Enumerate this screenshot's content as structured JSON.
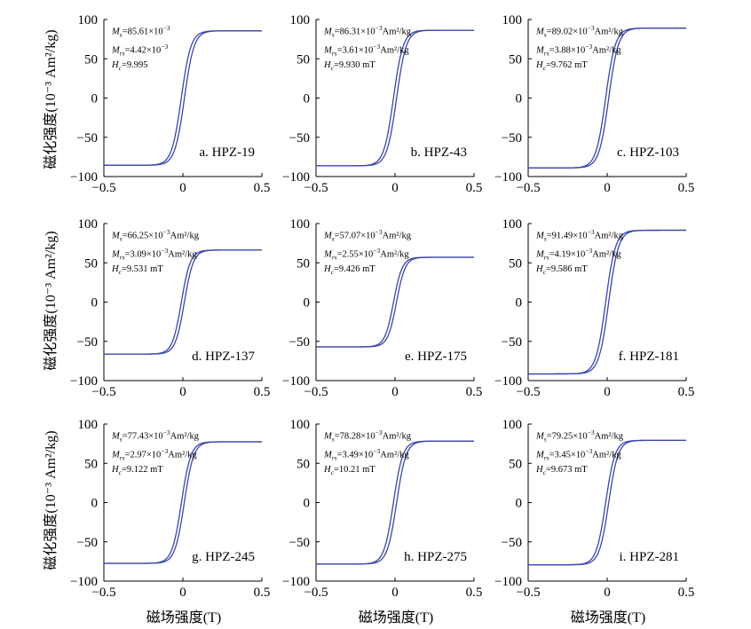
{
  "y_axis_label": "磁化强度(10⁻³ Am²/kg)",
  "x_axis_label": "磁场强度(T)",
  "colors": {
    "curve": "#3a46a8",
    "axis": "#000000"
  },
  "chart_data": [
    {
      "type": "line",
      "label": "a. HPZ-19",
      "xlim": [
        -0.5,
        0.5
      ],
      "ylim": [
        -100,
        100
      ],
      "xticks": [
        "−0.5",
        "0",
        "0.5"
      ],
      "yticks": [
        "100",
        "50",
        "0",
        "−50",
        "−100"
      ],
      "annotations": {
        "Ms": "85.61×10",
        "Mrs": "4.42×10",
        "Hc": "9.995",
        "Ms_exp": "−3",
        "Mrs_exp": "−3",
        "Ms_unit": "",
        "Mrs_unit": "",
        "Hc_unit": ""
      },
      "ms": 85.61,
      "mrs": 4.42,
      "hc": 9.995
    },
    {
      "type": "line",
      "label": "b. HPZ-43",
      "xlim": [
        -0.5,
        0.5
      ],
      "ylim": [
        -100,
        100
      ],
      "xticks": [
        "−0.5",
        "0",
        "0.5"
      ],
      "yticks": [
        "100",
        "50",
        "0",
        "−50",
        "−100"
      ],
      "annotations": {
        "Ms": "86.31×10",
        "Mrs": "3.61×10",
        "Hc": "9.930",
        "Ms_exp": "−3",
        "Mrs_exp": "−3",
        "Ms_unit": "Am²/kg",
        "Mrs_unit": "Am²/kg",
        "Hc_unit": " mT"
      },
      "ms": 86.31,
      "mrs": 3.61,
      "hc": 9.93
    },
    {
      "type": "line",
      "label": "c. HPZ-103",
      "xlim": [
        -0.5,
        0.5
      ],
      "ylim": [
        -100,
        100
      ],
      "xticks": [
        "−0.5",
        "0",
        "0.5"
      ],
      "yticks": [
        "100",
        "50",
        "0",
        "−50",
        "−100"
      ],
      "annotations": {
        "Ms": "89.02×10",
        "Mrs": "3.88×10",
        "Hc": "9.762",
        "Ms_exp": "−3",
        "Mrs_exp": "−3",
        "Ms_unit": "Am²/kg",
        "Mrs_unit": "Am²/kg",
        "Hc_unit": " mT"
      },
      "ms": 89.02,
      "mrs": 3.88,
      "hc": 9.762
    },
    {
      "type": "line",
      "label": "d. HPZ-137",
      "xlim": [
        -0.5,
        0.5
      ],
      "ylim": [
        -100,
        100
      ],
      "xticks": [
        "−0.5",
        "0",
        "0.5"
      ],
      "yticks": [
        "100",
        "50",
        "0",
        "−50",
        "−100"
      ],
      "annotations": {
        "Ms": "66.25×10",
        "Mrs": "3.09×10",
        "Hc": "9.531",
        "Ms_exp": "−3",
        "Mrs_exp": "−3",
        "Ms_unit": "Am²/kg",
        "Mrs_unit": "Am²/kg",
        "Hc_unit": " mT"
      },
      "ms": 66.25,
      "mrs": 3.09,
      "hc": 9.531
    },
    {
      "type": "line",
      "label": "e. HPZ-175",
      "xlim": [
        -0.5,
        0.5
      ],
      "ylim": [
        -100,
        100
      ],
      "xticks": [
        "−0.5",
        "0",
        "0.5"
      ],
      "yticks": [
        "100",
        "50",
        "0",
        "−50",
        "−100"
      ],
      "annotations": {
        "Ms": "57.07×10",
        "Mrs": "2.55×10",
        "Hc": "9.426",
        "Ms_exp": "−3",
        "Mrs_exp": "−3",
        "Ms_unit": "Am²/kg",
        "Mrs_unit": "Am²/kg",
        "Hc_unit": " mT"
      },
      "ms": 57.07,
      "mrs": 2.55,
      "hc": 9.426
    },
    {
      "type": "line",
      "label": "f. HPZ-181",
      "xlim": [
        -0.5,
        0.5
      ],
      "ylim": [
        -100,
        100
      ],
      "xticks": [
        "−0.5",
        "0",
        "0.5"
      ],
      "yticks": [
        "100",
        "50",
        "0",
        "−50",
        "−100"
      ],
      "annotations": {
        "Ms": "91.49×10",
        "Mrs": "4.19×10",
        "Hc": "9.586",
        "Ms_exp": "−3",
        "Mrs_exp": "−3",
        "Ms_unit": "Am²/kg",
        "Mrs_unit": "Am²/kg",
        "Hc_unit": " mT"
      },
      "ms": 91.49,
      "mrs": 4.19,
      "hc": 9.586
    },
    {
      "type": "line",
      "label": "g. HPZ-245",
      "xlim": [
        -0.5,
        0.5
      ],
      "ylim": [
        -100,
        100
      ],
      "xticks": [
        "−0.5",
        "0",
        "0.5"
      ],
      "yticks": [
        "100",
        "50",
        "0",
        "−50",
        "−100"
      ],
      "annotations": {
        "Ms": "77.43×10",
        "Mrs": "2.97×10",
        "Hc": "9.122",
        "Ms_exp": "−3",
        "Mrs_exp": "−3",
        "Ms_unit": "Am²/kg",
        "Mrs_unit": "Am²/kg",
        "Hc_unit": " mT"
      },
      "ms": 77.43,
      "mrs": 2.97,
      "hc": 9.122
    },
    {
      "type": "line",
      "label": "h. HPZ-275",
      "xlim": [
        -0.5,
        0.5
      ],
      "ylim": [
        -100,
        100
      ],
      "xticks": [
        "−0.5",
        "0",
        "0.5"
      ],
      "yticks": [
        "100",
        "50",
        "0",
        "−50",
        "−100"
      ],
      "annotations": {
        "Ms": "78.28×10",
        "Mrs": "3.49×10",
        "Hc": "10.21",
        "Ms_exp": "−3",
        "Mrs_exp": "−3",
        "Ms_unit": "Am²/kg",
        "Mrs_unit": "Am²/kg",
        "Hc_unit": " mT"
      },
      "ms": 78.28,
      "mrs": 3.49,
      "hc": 10.21
    },
    {
      "type": "line",
      "label": "i. HPZ-281",
      "xlim": [
        -0.5,
        0.5
      ],
      "ylim": [
        -100,
        100
      ],
      "xticks": [
        "−0.5",
        "0",
        "0.5"
      ],
      "yticks": [
        "100",
        "50",
        "0",
        "−50",
        "−100"
      ],
      "annotations": {
        "Ms": "79.25×10",
        "Mrs": "3.45×10",
        "Hc": "9.673",
        "Ms_exp": "−3",
        "Mrs_exp": "−3",
        "Ms_unit": "Am²/kg",
        "Mrs_unit": "Am²/kg",
        "Hc_unit": " mT"
      },
      "ms": 79.25,
      "mrs": 3.45,
      "hc": 9.673
    }
  ]
}
